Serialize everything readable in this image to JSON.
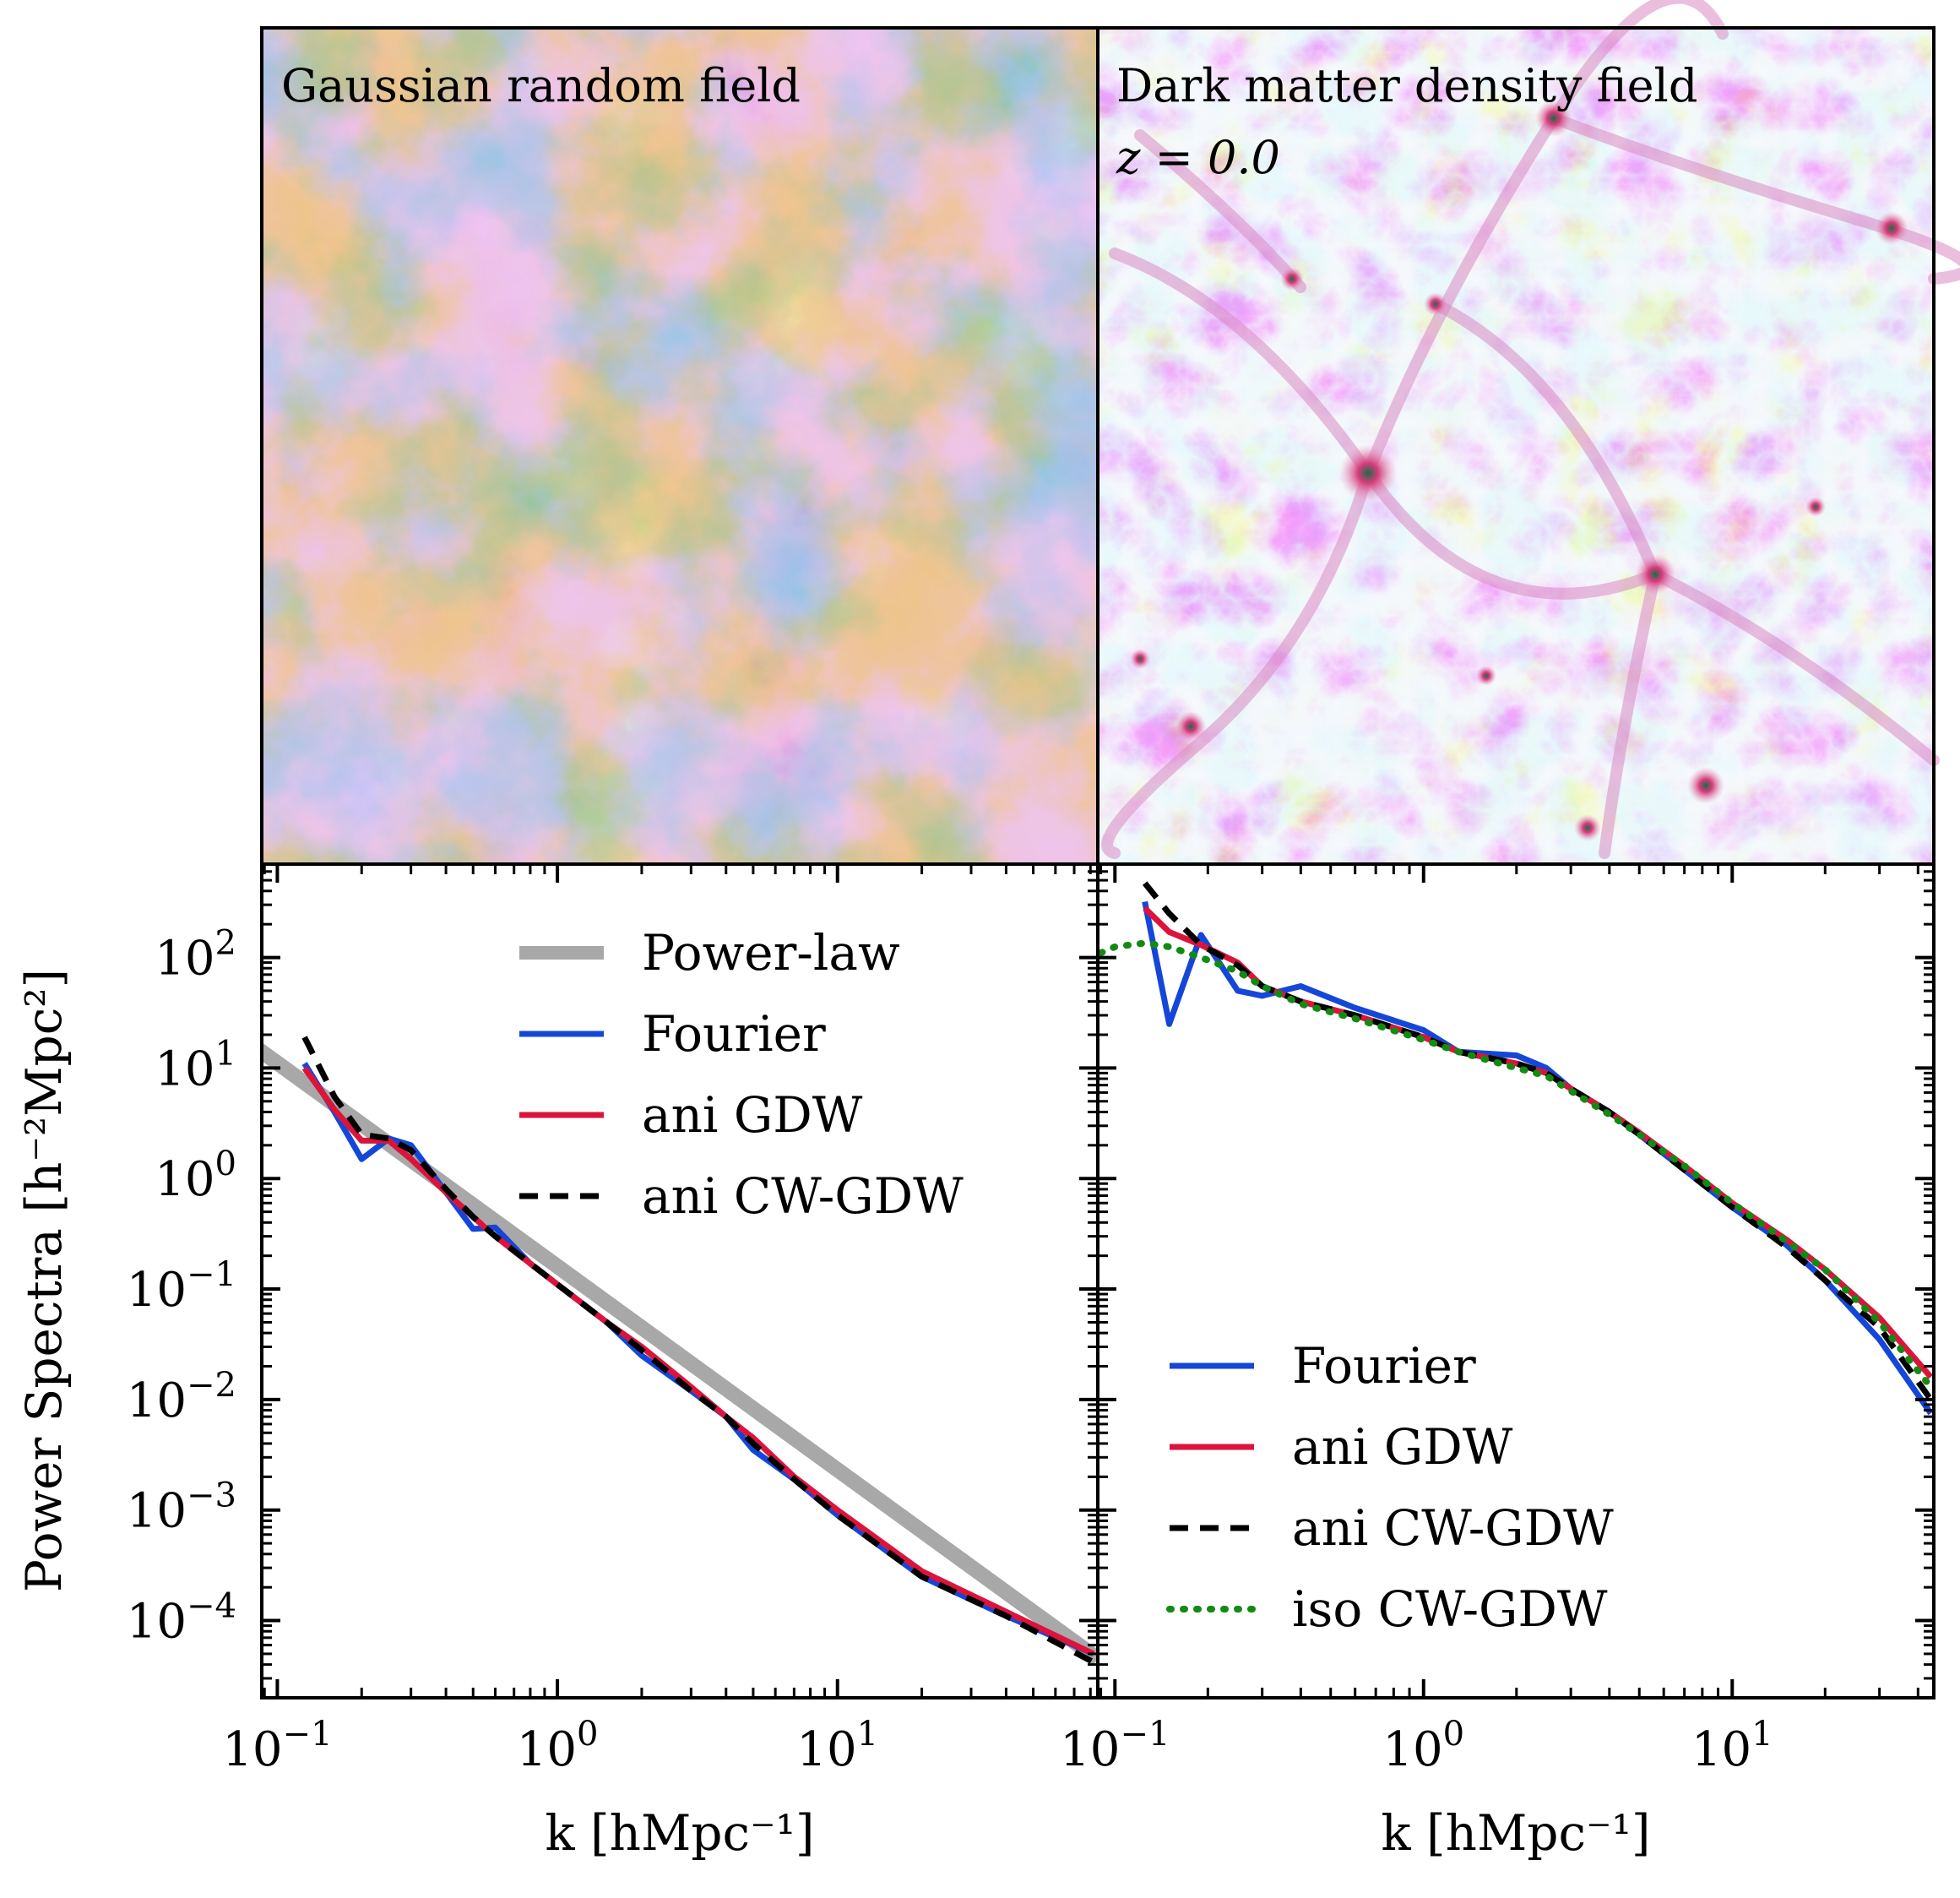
{
  "figure": {
    "panel_titles": {
      "grf": "Gaussian random field",
      "dm": "Dark matter density field",
      "redshift": "z = 0.0"
    },
    "colors": {
      "power_law": "#a8a8a8",
      "fourier": "#1447d8",
      "ani_gdw": "#dc143c",
      "ani_cw_gdw": "#000000",
      "iso_cw_gdw": "#138a13",
      "grf_low": "#cfd8f5",
      "grf_mid1": "#d98bc3",
      "grf_mid2": "#5f8a3a",
      "grf_high": "#1b4c6a",
      "dm_void": "#eaf4fb",
      "dm_filament": "#c9a4e0",
      "dm_node": "#d63c7a",
      "dm_core": "#1d6a4a"
    }
  },
  "chart_data": [
    {
      "type": "line",
      "panel": "left",
      "xscale": "log",
      "yscale": "log",
      "xlim": [
        0.088,
        85
      ],
      "ylim": [
        2e-05,
        700
      ],
      "xlabel": "k [hMpc⁻¹]",
      "ylabel": "Power Spectra [h⁻²Mpc²]",
      "x_ticks": [
        {
          "v": 0.1,
          "b": "10",
          "e": "−1"
        },
        {
          "v": 1,
          "b": "10",
          "e": "0"
        },
        {
          "v": 10,
          "b": "10",
          "e": "1"
        }
      ],
      "y_ticks": [
        {
          "v": 0.0001,
          "b": "10",
          "e": "−4"
        },
        {
          "v": 0.001,
          "b": "10",
          "e": "−3"
        },
        {
          "v": 0.01,
          "b": "10",
          "e": "−2"
        },
        {
          "v": 0.1,
          "b": "10",
          "e": "−1"
        },
        {
          "v": 1,
          "b": "10",
          "e": "0"
        },
        {
          "v": 10,
          "b": "10",
          "e": "1"
        },
        {
          "v": 100,
          "b": "10",
          "e": "2"
        }
      ],
      "legend_position": "upper-right",
      "series": [
        {
          "key": "power_law",
          "name": "Power-law",
          "style": "thick",
          "x": [
            0.085,
            85
          ],
          "y": [
            15,
            4.5e-05
          ]
        },
        {
          "key": "fourier",
          "name": "Fourier",
          "style": "solid",
          "x": [
            0.125,
            0.16,
            0.2,
            0.25,
            0.3,
            0.4,
            0.5,
            0.6,
            0.8,
            1.0,
            1.5,
            2,
            3,
            4,
            5,
            7,
            10,
            20,
            40,
            82
          ],
          "y": [
            11,
            4,
            1.5,
            2.3,
            2.0,
            0.75,
            0.35,
            0.36,
            0.17,
            0.11,
            0.05,
            0.025,
            0.012,
            0.007,
            0.0035,
            0.0019,
            0.0009,
            0.00025,
            0.00011,
            5e-05
          ]
        },
        {
          "key": "ani_gdw",
          "name": "ani GDW",
          "style": "solid",
          "x": [
            0.125,
            0.16,
            0.2,
            0.25,
            0.3,
            0.4,
            0.5,
            0.6,
            0.8,
            1.0,
            1.5,
            2,
            3,
            4,
            5,
            7,
            10,
            20,
            40,
            82
          ],
          "y": [
            10,
            4.2,
            2.2,
            2.2,
            1.5,
            0.75,
            0.45,
            0.3,
            0.17,
            0.11,
            0.05,
            0.03,
            0.013,
            0.007,
            0.0045,
            0.002,
            0.001,
            0.00028,
            0.00012,
            5e-05
          ]
        },
        {
          "key": "ani_cw_gdw",
          "name": "ani CW-GDW",
          "style": "dashed",
          "x": [
            0.125,
            0.16,
            0.2,
            0.25,
            0.3,
            0.4,
            0.5,
            0.6,
            0.8,
            1.0,
            1.5,
            2,
            3,
            4,
            5,
            7,
            10,
            20,
            40,
            82
          ],
          "y": [
            19,
            5.5,
            2.5,
            2.3,
            1.8,
            0.8,
            0.45,
            0.3,
            0.17,
            0.11,
            0.05,
            0.028,
            0.012,
            0.007,
            0.004,
            0.0019,
            0.0009,
            0.00025,
            0.00011,
            4.2e-05
          ]
        }
      ]
    },
    {
      "type": "line",
      "panel": "right",
      "xscale": "log",
      "yscale": "log",
      "xlim": [
        0.088,
        45
      ],
      "ylim": [
        2e-05,
        700
      ],
      "xlabel": "k [hMpc⁻¹]",
      "x_ticks": [
        {
          "v": 0.1,
          "b": "10",
          "e": "−1"
        },
        {
          "v": 1,
          "b": "10",
          "e": "0"
        },
        {
          "v": 10,
          "b": "10",
          "e": "1"
        }
      ],
      "legend_position": "lower-left",
      "series": [
        {
          "key": "fourier",
          "name": "Fourier",
          "style": "solid",
          "x": [
            0.125,
            0.15,
            0.19,
            0.25,
            0.3,
            0.4,
            0.6,
            1.0,
            1.3,
            2.0,
            2.5,
            3,
            4,
            5,
            7,
            10,
            15,
            20,
            30,
            44
          ],
          "y": [
            320,
            25,
            160,
            50,
            45,
            55,
            35,
            22,
            14,
            13,
            10,
            6.5,
            4,
            2.5,
            1.2,
            0.55,
            0.25,
            0.12,
            0.035,
            0.0075
          ]
        },
        {
          "key": "ani_gdw",
          "name": "ani GDW",
          "style": "solid",
          "x": [
            0.125,
            0.15,
            0.19,
            0.25,
            0.3,
            0.4,
            0.6,
            1.0,
            1.3,
            2.0,
            2.5,
            3,
            4,
            5,
            7,
            10,
            15,
            20,
            30,
            44
          ],
          "y": [
            280,
            170,
            130,
            90,
            55,
            40,
            30,
            19,
            14,
            11,
            9,
            6.5,
            4,
            2.6,
            1.3,
            0.6,
            0.28,
            0.15,
            0.055,
            0.016
          ]
        },
        {
          "key": "ani_cw_gdw",
          "name": "ani CW-GDW",
          "style": "dashed",
          "x": [
            0.125,
            0.15,
            0.19,
            0.25,
            0.3,
            0.4,
            0.6,
            1.0,
            1.3,
            2.0,
            2.5,
            3,
            4,
            5,
            7,
            10,
            15,
            20,
            30,
            44
          ],
          "y": [
            470,
            250,
            130,
            85,
            55,
            40,
            30,
            19,
            14,
            11,
            9,
            6.5,
            4,
            2.5,
            1.2,
            0.55,
            0.24,
            0.12,
            0.045,
            0.01
          ]
        },
        {
          "key": "iso_cw_gdw",
          "name": "iso CW-GDW",
          "style": "dotted",
          "x": [
            0.09,
            0.1,
            0.125,
            0.15,
            0.19,
            0.25,
            0.3,
            0.4,
            0.6,
            1.0,
            1.3,
            2.0,
            2.5,
            3,
            4,
            5,
            7,
            10,
            15,
            20,
            30,
            44
          ],
          "y": [
            110,
            125,
            135,
            125,
            100,
            75,
            55,
            38,
            28,
            18,
            14,
            10,
            8.5,
            6.2,
            3.8,
            2.5,
            1.3,
            0.6,
            0.27,
            0.15,
            0.05,
            0.013
          ]
        }
      ]
    }
  ]
}
